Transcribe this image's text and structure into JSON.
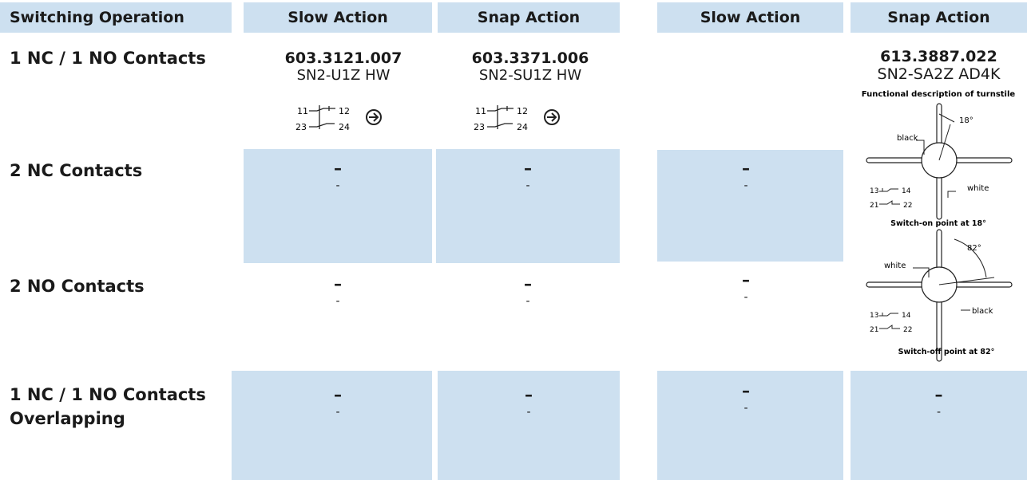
{
  "table": {
    "headers": [
      "Switching Operation",
      "Slow Action",
      "Snap Action",
      "Slow Action",
      "Snap Action"
    ],
    "rows": [
      {
        "label": "1 NC / 1 NO Contacts",
        "cells": [
          {
            "code": "603.3121.007",
            "name": "SN2-U1Z HW",
            "terminals": [
              "11",
              "12",
              "23",
              "24"
            ]
          },
          {
            "code": "603.3371.006",
            "name": "SN2-SU1Z HW",
            "terminals": [
              "11",
              "12",
              "23",
              "24"
            ]
          },
          null,
          {
            "code": "613.3887.022",
            "name": "SN2-SA2Z AD4K"
          }
        ]
      },
      {
        "label": "2 NC Contacts",
        "cells": [
          {
            "dash": "–",
            "minor": "-"
          },
          {
            "dash": "–",
            "minor": "-"
          },
          {
            "dash": "–",
            "minor": "-"
          }
        ]
      },
      {
        "label": "2 NO Contacts",
        "cells": [
          {
            "dash": "–",
            "minor": "-"
          },
          {
            "dash": "–",
            "minor": "-"
          },
          {
            "dash": "–",
            "minor": "-"
          }
        ]
      },
      {
        "label": [
          "1 NC / 1 NO Contacts",
          "Overlapping"
        ],
        "cells": [
          {
            "dash": "–",
            "minor": "-"
          },
          {
            "dash": "–",
            "minor": "-"
          },
          {
            "dash": "–",
            "minor": "-"
          },
          {
            "dash": "–",
            "minor": "-"
          }
        ]
      }
    ]
  },
  "diagram": {
    "title": "Functional description of turnstile",
    "on": {
      "angle": "18°",
      "handle_a": "black",
      "handle_b": "white",
      "terminals": [
        "13",
        "14",
        "21",
        "22"
      ],
      "caption": "Switch-on point at 18°"
    },
    "off": {
      "angle": "82°",
      "handle_a": "white",
      "handle_b": "black",
      "terminals": [
        "13",
        "14",
        "21",
        "22"
      ],
      "caption": "Switch-off point at 82°"
    }
  }
}
